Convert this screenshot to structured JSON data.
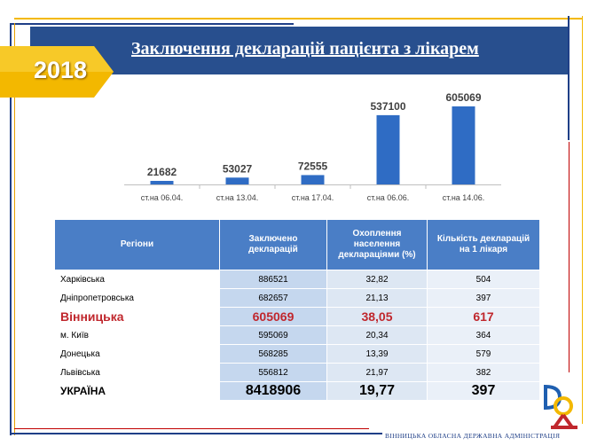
{
  "slide": {
    "title": "Заключення декларацій пацієнта з лікарем",
    "year": "2018",
    "footer": "ВІННИЦЬКА ОБЛАСНА ДЕРЖАВНА АДМІНІСТРАЦІЯ"
  },
  "colors": {
    "banner": "#284f8e",
    "badge": "#f3b800",
    "bar": "#2f6cc4",
    "table_header": "#4a7ec6",
    "highlight_text": "#c0272d"
  },
  "chart_data": {
    "type": "bar",
    "categories": [
      "ст.на 06.04.",
      "ст.на 13.04.",
      "ст.на 17.04.",
      "ст.на 06.06.",
      "ст.на 14.06."
    ],
    "values": [
      21682,
      53027,
      72555,
      537100,
      605069
    ],
    "grid": false,
    "data_labels": true
  },
  "table": {
    "headers": [
      "Регіони",
      "Заключено декларацій",
      "Охоплення населення деклараціями (%)",
      "Кількість декларацій на 1 лікаря"
    ],
    "rows": [
      {
        "region": "Харківська",
        "declarations": "886521",
        "coverage": "32,82",
        "per_doctor": "504"
      },
      {
        "region": "Дніпропетровська",
        "declarations": "682657",
        "coverage": "21,13",
        "per_doctor": "397"
      },
      {
        "region": "Вінницька",
        "declarations": "605069",
        "coverage": "38,05",
        "per_doctor": "617"
      },
      {
        "region": "м. Київ",
        "declarations": "595069",
        "coverage": "20,34",
        "per_doctor": "364"
      },
      {
        "region": "Донецька",
        "declarations": "568285",
        "coverage": "13,39",
        "per_doctor": "579"
      },
      {
        "region": "Львівська",
        "declarations": "556812",
        "coverage": "21,97",
        "per_doctor": "382"
      },
      {
        "region": "УКРАЇНА",
        "declarations": "8418906",
        "coverage": "19,77",
        "per_doctor": "397"
      }
    ]
  }
}
